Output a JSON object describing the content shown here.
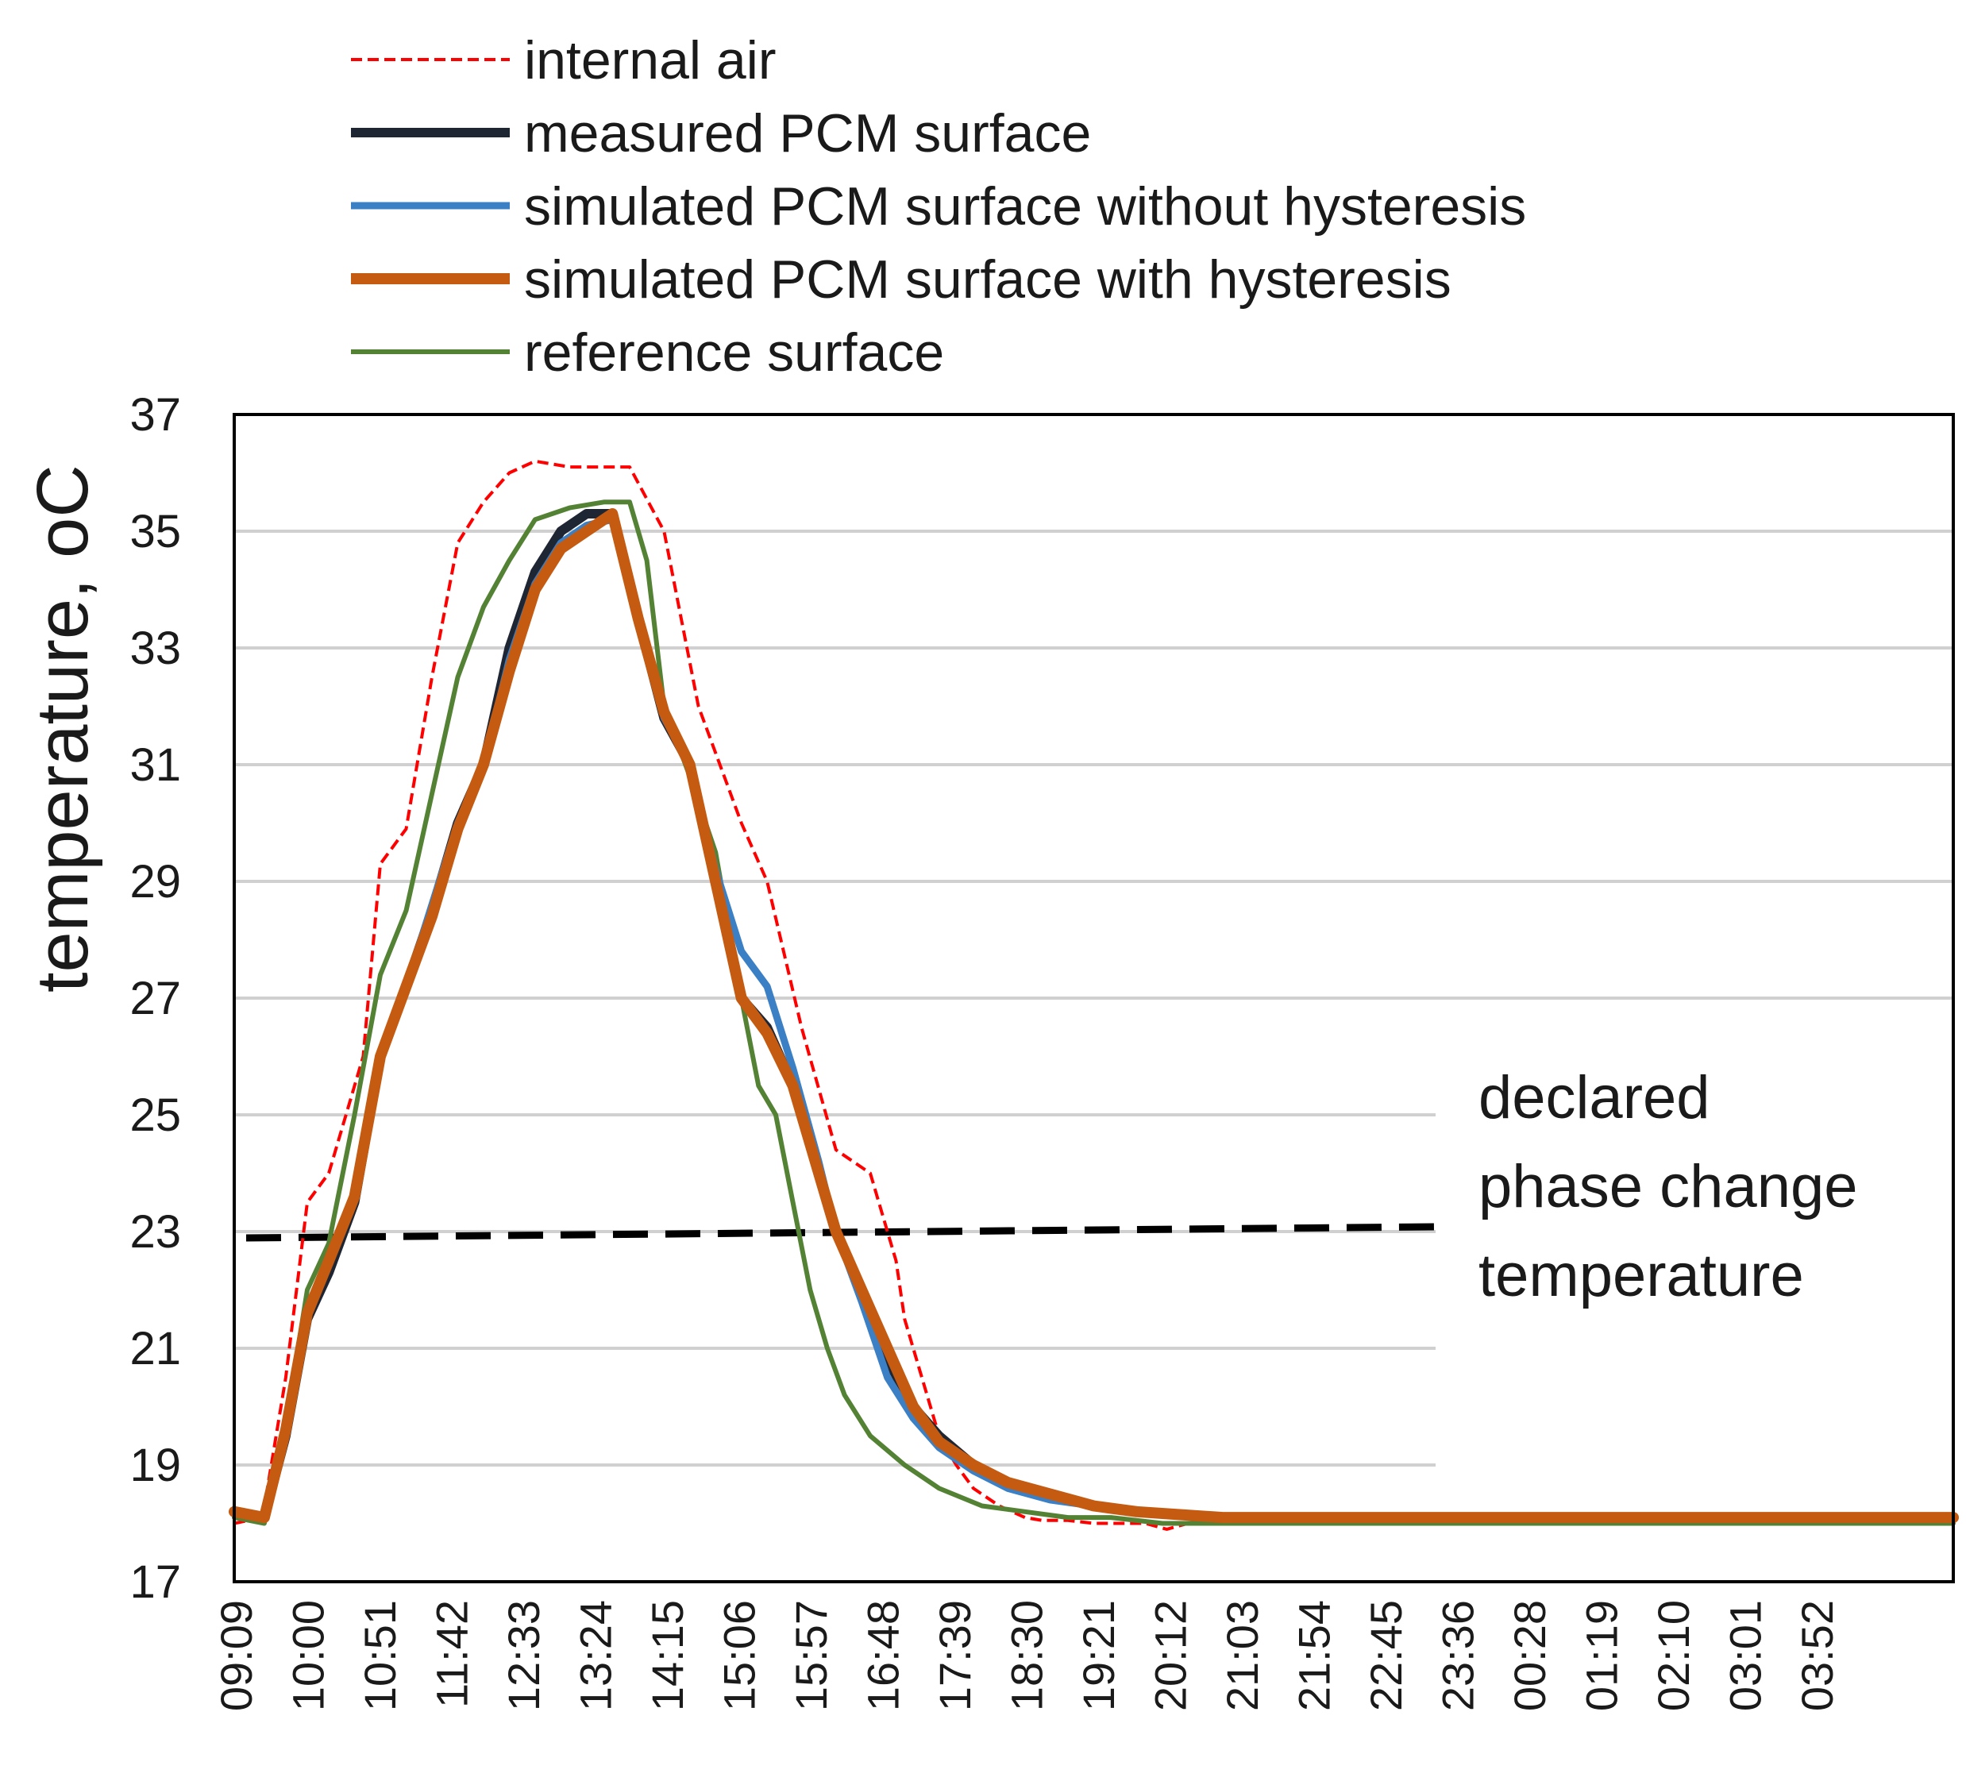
{
  "chart_data": {
    "type": "line",
    "title": "",
    "xlabel": "",
    "ylabel": "temperature, ",
    "ylabel_unit": "oC",
    "ylim": [
      17,
      37
    ],
    "yticks": [
      17,
      19,
      21,
      23,
      25,
      27,
      29,
      31,
      33,
      35,
      37
    ],
    "grid": "horizontal",
    "legend_position": "top",
    "x_tick_labels": [
      "09:09",
      "10:00",
      "10:51",
      "11:42",
      "12:33",
      "13:24",
      "14:15",
      "15:06",
      "15:57",
      "16:48",
      "17:39",
      "18:30",
      "19:21",
      "20:12",
      "21:03",
      "21:54",
      "22:45",
      "23:36",
      "00:28",
      "01:19",
      "02:10",
      "03:01",
      "03:52"
    ],
    "x_hours_since_start_range": [
      0,
      20.0
    ],
    "series": [
      {
        "name": "internal air",
        "color": "#ff0000",
        "style": "dotted",
        "x": [
          0,
          0.33,
          0.6,
          0.85,
          1.1,
          1.5,
          1.7,
          2.0,
          2.3,
          2.6,
          2.9,
          3.2,
          3.5,
          3.9,
          4.3,
          4.6,
          5.0,
          5.4,
          5.9,
          6.2,
          6.6,
          7.0,
          7.4,
          7.7,
          7.8,
          8.0,
          8.2,
          8.4,
          8.6,
          8.7,
          8.9,
          9.2,
          9.4,
          9.7,
          10.0,
          10.3,
          10.6,
          10.85,
          11.1,
          11.5,
          11.8,
          12.3,
          12.8,
          13.5,
          14.5,
          15.5,
          16.5,
          17.5,
          18.5,
          20.0
        ],
        "values": [
          18.0,
          18.1,
          20.5,
          23.5,
          24.0,
          26.0,
          29.3,
          29.9,
          32.5,
          34.8,
          35.5,
          36.0,
          36.2,
          36.1,
          36.1,
          36.1,
          35.0,
          32.0,
          30.0,
          29.0,
          26.5,
          24.4,
          24.0,
          22.5,
          21.5,
          20.5,
          19.5,
          19.0,
          18.6,
          18.5,
          18.3,
          18.1,
          18.05,
          18.05,
          18.0,
          18.0,
          18.0,
          17.9,
          18.0,
          18.0,
          18.0,
          18.0,
          18.0,
          18.0,
          18.0,
          18.0,
          18.0,
          18.0,
          18.0,
          18.0
        ]
      },
      {
        "name": "measured PCM surface",
        "color": "#1f2633",
        "style": "solid",
        "x": [
          0,
          0.35,
          0.6,
          0.85,
          1.1,
          1.4,
          1.7,
          2.0,
          2.3,
          2.6,
          2.9,
          3.2,
          3.5,
          3.8,
          4.1,
          4.4,
          4.7,
          5.0,
          5.3,
          5.6,
          5.9,
          6.2,
          6.5,
          6.8,
          7.0,
          7.3,
          7.6,
          7.9,
          8.2,
          8.6,
          9.0,
          9.5,
          10.0,
          10.5,
          11.0,
          11.5,
          12.0,
          13.0,
          14.0,
          15.0,
          17.0,
          20.0
        ],
        "values": [
          18.2,
          18.1,
          19.5,
          21.5,
          22.3,
          23.5,
          26.0,
          27.2,
          28.5,
          30.0,
          31.0,
          33.0,
          34.3,
          35.0,
          35.3,
          35.3,
          33.5,
          31.8,
          31.0,
          29.0,
          27.0,
          26.5,
          25.5,
          24.0,
          23.0,
          22.0,
          20.8,
          20.0,
          19.5,
          19.0,
          18.7,
          18.5,
          18.3,
          18.2,
          18.15,
          18.1,
          18.1,
          18.1,
          18.1,
          18.1,
          18.1,
          18.1
        ]
      },
      {
        "name": "simulated PCM surface without hysteresis",
        "color": "#3b7fc4",
        "style": "solid",
        "x": [
          0,
          0.35,
          0.6,
          0.85,
          1.1,
          1.4,
          1.7,
          2.0,
          2.3,
          2.6,
          2.9,
          3.2,
          3.5,
          3.8,
          4.1,
          4.4,
          4.7,
          5.0,
          5.3,
          5.6,
          5.9,
          6.2,
          6.5,
          6.8,
          7.0,
          7.3,
          7.6,
          7.9,
          8.2,
          8.6,
          9.0,
          9.5,
          10.0,
          10.5,
          11.0,
          11.5,
          12.0,
          13.0,
          14.0,
          15.0,
          17.0,
          20.0
        ],
        "values": [
          18.2,
          18.1,
          19.6,
          21.6,
          22.5,
          23.6,
          26.0,
          27.2,
          28.6,
          30.0,
          31.0,
          32.8,
          34.1,
          34.8,
          35.1,
          35.2,
          33.6,
          31.8,
          31.0,
          29.2,
          27.8,
          27.2,
          25.8,
          24.2,
          23.0,
          21.8,
          20.5,
          19.8,
          19.3,
          18.9,
          18.6,
          18.4,
          18.3,
          18.2,
          18.15,
          18.1,
          18.1,
          18.1,
          18.1,
          18.1,
          18.1,
          18.1
        ]
      },
      {
        "name": "simulated PCM surface with hysteresis",
        "color": "#c55a11",
        "style": "solid",
        "x": [
          0,
          0.35,
          0.6,
          0.85,
          1.1,
          1.4,
          1.7,
          2.0,
          2.3,
          2.6,
          2.9,
          3.2,
          3.5,
          3.8,
          4.1,
          4.4,
          4.7,
          5.0,
          5.3,
          5.6,
          5.9,
          6.2,
          6.5,
          6.8,
          7.0,
          7.3,
          7.6,
          7.9,
          8.2,
          8.6,
          9.0,
          9.5,
          10.0,
          10.5,
          11.0,
          11.5,
          12.0,
          13.0,
          14.0,
          15.0,
          17.0,
          20.0
        ],
        "values": [
          18.2,
          18.1,
          19.6,
          21.6,
          22.5,
          23.6,
          26.0,
          27.2,
          28.4,
          29.9,
          31.0,
          32.6,
          34.0,
          34.7,
          35.0,
          35.3,
          33.5,
          31.9,
          31.0,
          29.0,
          27.0,
          26.4,
          25.5,
          24.0,
          23.0,
          22.0,
          21.0,
          20.0,
          19.4,
          19.0,
          18.7,
          18.5,
          18.3,
          18.2,
          18.15,
          18.1,
          18.1,
          18.1,
          18.1,
          18.1,
          18.1,
          18.1
        ]
      },
      {
        "name": "reference surface",
        "color": "#548235",
        "style": "solid",
        "x": [
          0,
          0.35,
          0.6,
          0.85,
          1.1,
          1.4,
          1.7,
          2.0,
          2.3,
          2.6,
          2.9,
          3.2,
          3.5,
          3.9,
          4.3,
          4.6,
          4.8,
          5.0,
          5.3,
          5.6,
          5.9,
          6.1,
          6.3,
          6.5,
          6.7,
          6.9,
          7.1,
          7.4,
          7.8,
          8.2,
          8.7,
          9.2,
          9.7,
          10.2,
          10.8,
          11.5,
          12.5,
          14.0,
          16.0,
          18.0,
          20.0
        ],
        "values": [
          18.1,
          18.0,
          19.7,
          22.0,
          22.8,
          25.0,
          27.4,
          28.5,
          30.5,
          32.5,
          33.7,
          34.5,
          35.2,
          35.4,
          35.5,
          35.5,
          34.5,
          32.0,
          30.8,
          29.5,
          27.0,
          25.5,
          25.0,
          23.5,
          22.0,
          21.0,
          20.2,
          19.5,
          19.0,
          18.6,
          18.3,
          18.2,
          18.1,
          18.1,
          18.0,
          18.0,
          18.0,
          18.0,
          18.0,
          18.0,
          18.0
        ]
      }
    ],
    "reference_line": {
      "label_lines": [
        "declared",
        "phase change",
        "temperature"
      ],
      "value": 23.0,
      "style": "dashed",
      "color": "#000000"
    }
  }
}
